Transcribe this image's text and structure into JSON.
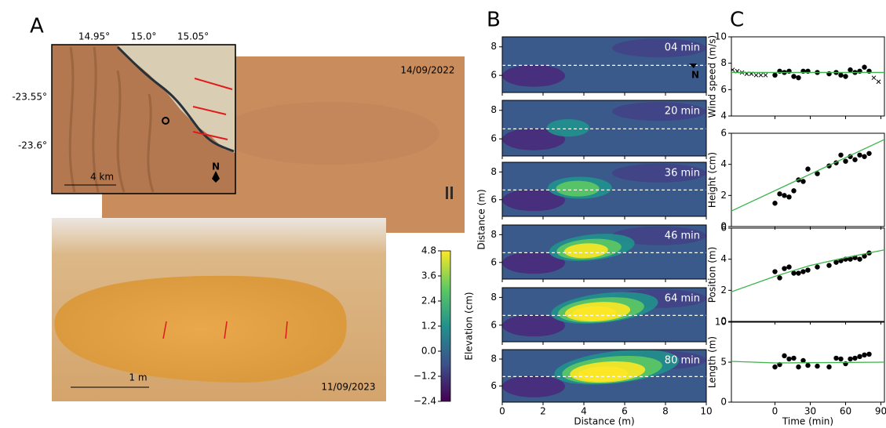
{
  "panel_labels": [
    "A",
    "B",
    "C"
  ],
  "panel_a": {
    "lon_ticks": [
      "14.95°",
      "15.0°",
      "15.05°"
    ],
    "lat_ticks": [
      "-23.55°",
      "-23.6°"
    ],
    "scale_top": "4 km",
    "north": "N",
    "date_top": "14/09/2022",
    "scale_bottom": "1 m",
    "date_bottom": "11/09/2023"
  },
  "panel_b": {
    "type": "contour",
    "xlabel": "Distance (m)",
    "ylabel": "Distance (m)",
    "xlim": [
      0,
      10
    ],
    "ylim": [
      4.8,
      8.7
    ],
    "xticks": [
      0,
      2,
      4,
      6,
      8,
      10
    ],
    "yticks": [
      6,
      8
    ],
    "dashed_y": 6.7,
    "north": "N",
    "frames": [
      "04 min",
      "20 min",
      "36 min",
      "46 min",
      "64 min",
      "80 min"
    ],
    "colorbar": {
      "label": "Elevation (cm)",
      "lim": [
        -2.4,
        4.8
      ],
      "ticks": [
        4.8,
        3.6,
        2.4,
        1.2,
        {
          "value": 0,
          "label": "0.0"
        },
        {
          "value": -1.2,
          "label": "−1.2"
        },
        {
          "value": -2.4,
          "label": "−2.4"
        }
      ]
    }
  },
  "chart_data": [
    {
      "type": "scatter",
      "ylabel": "Wind speed (m/s)",
      "xlim": [
        -37,
        93
      ],
      "xticks": [
        0,
        30,
        60,
        90
      ],
      "ylim": [
        4,
        10
      ],
      "yticks": [
        4,
        6,
        8,
        10
      ],
      "series": [
        {
          "marker": "o",
          "color": "#000000",
          "x": [
            0,
            4,
            8,
            12,
            16,
            20,
            24,
            28,
            36,
            46,
            52,
            56,
            60,
            64,
            68,
            72,
            76,
            80
          ],
          "values": [
            7.1,
            7.4,
            7.3,
            7.4,
            7.0,
            6.9,
            7.4,
            7.4,
            7.3,
            7.2,
            7.3,
            7.1,
            7.0,
            7.5,
            7.3,
            7.4,
            7.7,
            7.4
          ]
        },
        {
          "marker": "x",
          "color": "#000000",
          "x": [
            -36,
            -32,
            -28,
            -24,
            -20,
            -16,
            -12,
            -8,
            84,
            88
          ],
          "values": [
            7.5,
            7.4,
            7.3,
            7.2,
            7.2,
            7.1,
            7.1,
            7.1,
            6.9,
            6.6
          ]
        },
        {
          "marker": "line",
          "color": "#3cb44b",
          "x": [
            -37,
            0,
            93
          ],
          "values": [
            7.3,
            7.3,
            7.3
          ]
        }
      ]
    },
    {
      "type": "scatter",
      "ylabel": "Height (cm)",
      "xlim": [
        -37,
        93
      ],
      "xticks": [
        0,
        30,
        60,
        90
      ],
      "ylim": [
        0,
        6
      ],
      "yticks": [
        0,
        2,
        4,
        6
      ],
      "series": [
        {
          "marker": "o",
          "color": "#000000",
          "x": [
            0,
            4,
            8,
            12,
            16,
            20,
            24,
            28,
            36,
            46,
            52,
            56,
            60,
            64,
            68,
            72,
            76,
            80
          ],
          "values": [
            1.5,
            2.1,
            2.0,
            1.9,
            2.3,
            3.0,
            2.9,
            3.7,
            3.4,
            3.9,
            4.1,
            4.6,
            4.2,
            4.5,
            4.3,
            4.6,
            4.5,
            4.7
          ]
        },
        {
          "marker": "line",
          "color": "#3cb44b",
          "x": [
            -37,
            93
          ],
          "values": [
            1.0,
            5.6
          ]
        }
      ]
    },
    {
      "type": "scatter",
      "ylabel": "Position (m)",
      "xlim": [
        -37,
        93
      ],
      "xticks": [
        0,
        30,
        60,
        90
      ],
      "ylim": [
        0,
        6
      ],
      "yticks": [
        0,
        2,
        4,
        6
      ],
      "series": [
        {
          "marker": "o",
          "color": "#000000",
          "x": [
            0,
            4,
            8,
            12,
            16,
            20,
            24,
            28,
            36,
            46,
            52,
            56,
            60,
            64,
            68,
            72,
            76,
            80
          ],
          "values": [
            3.2,
            2.8,
            3.4,
            3.5,
            3.1,
            3.1,
            3.2,
            3.3,
            3.5,
            3.6,
            3.8,
            3.9,
            4.0,
            4.0,
            4.1,
            4.0,
            4.2,
            4.4
          ]
        },
        {
          "marker": "line",
          "color": "#3cb44b",
          "x": [
            -37,
            0,
            30,
            60,
            93
          ],
          "values": [
            1.9,
            2.9,
            3.6,
            4.1,
            4.6
          ]
        }
      ]
    },
    {
      "type": "scatter",
      "ylabel": "Length (m)",
      "xlabel": "Time (min)",
      "xlim": [
        -37,
        93
      ],
      "xticks": [
        0,
        30,
        60,
        90
      ],
      "ylim": [
        0,
        10
      ],
      "yticks": [
        0,
        5,
        10
      ],
      "series": [
        {
          "marker": "o",
          "color": "#000000",
          "x": [
            0,
            4,
            8,
            12,
            16,
            20,
            24,
            28,
            36,
            46,
            52,
            56,
            60,
            64,
            68,
            72,
            76,
            80
          ],
          "values": [
            4.4,
            4.7,
            5.8,
            5.4,
            5.5,
            4.4,
            5.2,
            4.6,
            4.5,
            4.4,
            5.5,
            5.4,
            4.8,
            5.4,
            5.5,
            5.7,
            5.9,
            6.0
          ]
        },
        {
          "marker": "line",
          "color": "#3cb44b",
          "x": [
            -37,
            0,
            93
          ],
          "values": [
            5.1,
            4.9,
            5.0
          ]
        }
      ]
    }
  ]
}
